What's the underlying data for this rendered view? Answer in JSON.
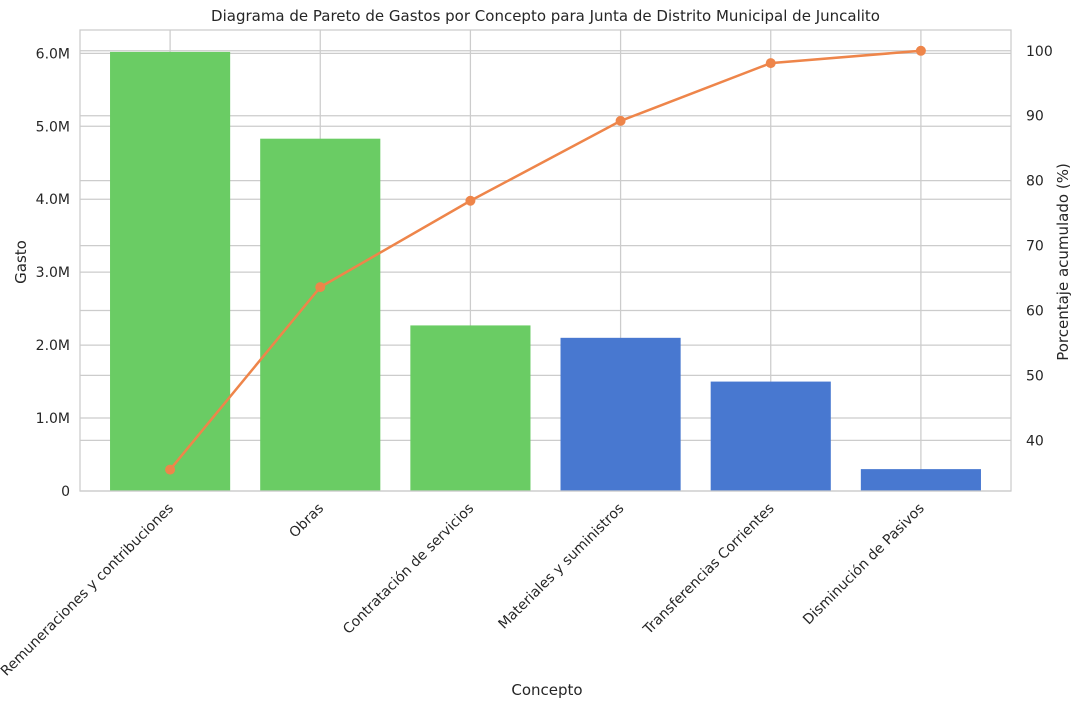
{
  "chart_data": {
    "type": "bar",
    "title": "Diagrama de Pareto de Gastos por Concepto para Junta de Distrito Municipal de Juncalito",
    "xlabel": "Concepto",
    "ylabel": "Gasto",
    "y2label": "Porcentaje acumulado (%)",
    "categories": [
      "Remuneraciones y contribuciones",
      "Obras",
      "Contratación de servicios",
      "Materiales y suministros",
      "Transferencias Corrientes",
      "Disminución de Pasivos"
    ],
    "values": [
      6020000,
      4830000,
      2270000,
      2100000,
      1500000,
      300000
    ],
    "bar_colors": [
      "#6acc64",
      "#6acc64",
      "#6acc64",
      "#4878d0",
      "#4878d0",
      "#4878d0"
    ],
    "cumulative_percent": [
      35.5,
      63.6,
      76.9,
      89.2,
      98.1,
      100.0
    ],
    "line_color": "#ee854a",
    "ylim": [
      0,
      6320000
    ],
    "y_ticks": [
      0,
      1000000,
      2000000,
      3000000,
      4000000,
      5000000,
      6000000
    ],
    "y_tick_labels": [
      "0",
      "1.0M",
      "2.0M",
      "3.0M",
      "4.0M",
      "5.0M",
      "6.0M"
    ],
    "y2lim": [
      32.2,
      103.2
    ],
    "y2_ticks": [
      40,
      50,
      60,
      70,
      80,
      90,
      100
    ],
    "y2_tick_labels": [
      "40",
      "50",
      "60",
      "70",
      "80",
      "90",
      "100"
    ],
    "grid": true,
    "legend": "none"
  }
}
